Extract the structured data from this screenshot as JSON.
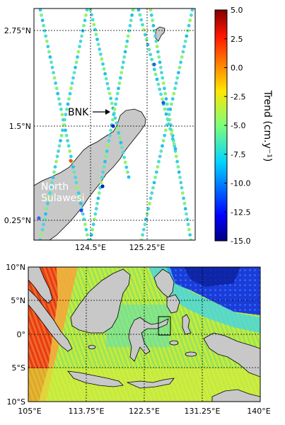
{
  "chart_data": [
    {
      "type": "scatter",
      "panel": "top",
      "description_lines": "altimetry track trends (ascending/descending tracks) near North Sulawesi",
      "x_ticks": [
        "124.5°E",
        "125.25°E"
      ],
      "y_ticks": [
        "2.75°N",
        "1.5°N",
        "0.25°N"
      ],
      "xlim": [
        124.0,
        125.6
      ],
      "ylim": [
        0.1,
        3.0
      ],
      "annotations": {
        "station": "BNK",
        "region_line1": "North",
        "region_line2": "Sulawesi"
      },
      "grid": true
    },
    {
      "type": "heatmap",
      "panel": "bottom",
      "x_ticks": [
        "105°E",
        "113.75°E",
        "122.5°E",
        "131.25°E",
        "140°E"
      ],
      "y_ticks": [
        "10°N",
        "5°N",
        "0°",
        "5°S",
        "10°S"
      ],
      "xlim": [
        105,
        140
      ],
      "ylim": [
        -10,
        10
      ],
      "grid": true
    }
  ],
  "colorbar": {
    "label": "Trend (cm.y⁻¹)",
    "ticks": [
      "5.0",
      "2.5",
      "0.0",
      "-2.5",
      "-5.0",
      "-7.5",
      "-10.0",
      "-12.5",
      "-15.0"
    ],
    "vmin": -15.0,
    "vmax": 5.0,
    "colormap": "jet"
  }
}
